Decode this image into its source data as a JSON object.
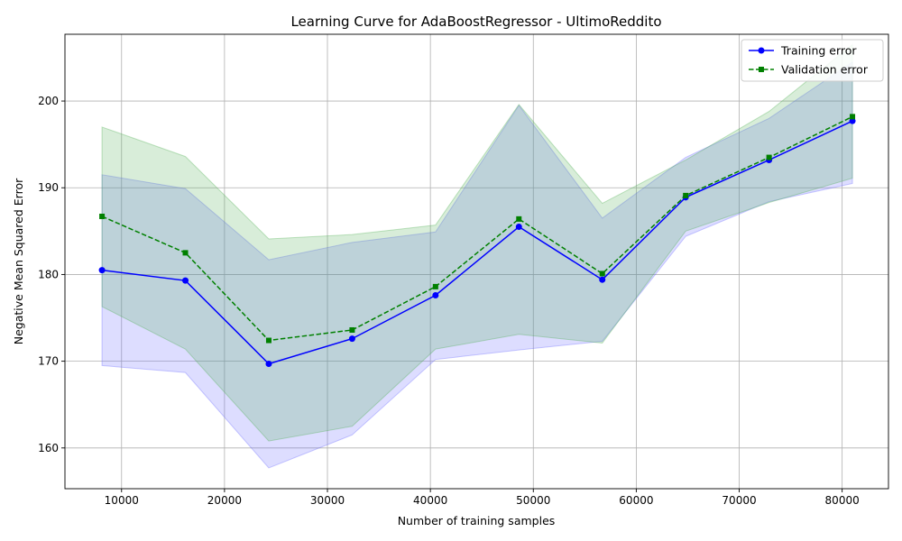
{
  "chart_data": {
    "type": "line",
    "title": "Learning Curve for AdaBoostRegressor - UltimoReddito",
    "xlabel": "Number of training samples",
    "ylabel": "Negative Mean Squared Error",
    "xlim": [
      4500,
      84500
    ],
    "ylim": [
      155.3,
      207.7
    ],
    "xticks": [
      10000,
      20000,
      30000,
      40000,
      50000,
      60000,
      70000,
      80000
    ],
    "yticks": [
      160,
      170,
      180,
      190,
      200
    ],
    "grid": true,
    "legend_position": "top-right",
    "x": [
      8100,
      16200,
      24300,
      32400,
      40500,
      48600,
      56700,
      64800,
      72900,
      81000
    ],
    "series": [
      {
        "name": "Training error",
        "color": "#0000ff",
        "line_style": "solid",
        "marker": "circle",
        "values": [
          180.5,
          179.3,
          169.7,
          172.6,
          177.6,
          185.5,
          179.4,
          188.9,
          193.2,
          197.7
        ],
        "band_upper": [
          191.5,
          189.9,
          181.7,
          183.7,
          184.9,
          199.5,
          186.5,
          193.5,
          198.0,
          204.5
        ],
        "band_lower": [
          169.5,
          168.7,
          157.7,
          161.5,
          170.2,
          171.3,
          172.3,
          184.4,
          188.4,
          190.5
        ],
        "band_color": "#6666ff"
      },
      {
        "name": "Validation error",
        "color": "#008000",
        "line_style": "dashed",
        "marker": "square",
        "values": [
          186.7,
          182.5,
          172.4,
          173.6,
          178.6,
          186.4,
          180.1,
          189.1,
          193.5,
          198.2
        ],
        "band_upper": [
          197.0,
          193.6,
          184.1,
          184.6,
          185.7,
          199.6,
          188.2,
          193.2,
          198.8,
          206.5
        ],
        "band_lower": [
          176.3,
          171.4,
          160.8,
          162.5,
          171.4,
          173.1,
          172.1,
          185.0,
          188.3,
          191.1
        ],
        "band_color": "#4caf50"
      }
    ]
  }
}
